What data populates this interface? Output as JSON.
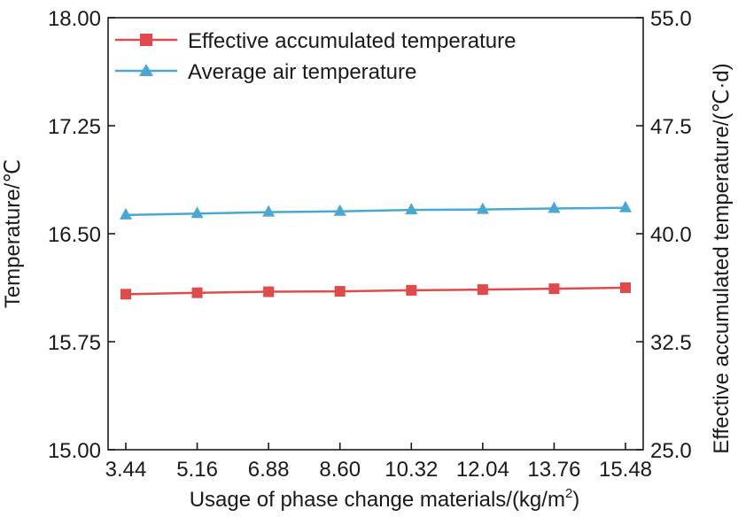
{
  "chart_data": {
    "type": "line",
    "xlabel": "Usage of phase change materials/(kg/m",
    "xlabel_sup": "2",
    "xlabel_close": ")",
    "ylabel_left": "Temperature/℃",
    "ylabel_right": "Effective accumulated temperature/(℃·d)",
    "categories": [
      "3.44",
      "5.16",
      "6.88",
      "8.60",
      "10.32",
      "12.04",
      "13.76",
      "15.48"
    ],
    "x": [
      3.44,
      5.16,
      6.88,
      8.6,
      10.32,
      12.04,
      13.76,
      15.48
    ],
    "xlim": [
      3.44,
      15.48
    ],
    "y_left": {
      "ylim": [
        15.0,
        18.0
      ],
      "ticks": [
        "15.00",
        "15.75",
        "16.50",
        "17.25",
        "18.00"
      ],
      "tick_values": [
        15.0,
        15.75,
        16.5,
        17.25,
        18.0
      ]
    },
    "y_right": {
      "ylim": [
        25.0,
        55.0
      ],
      "ticks": [
        "25.0",
        "32.5",
        "40.0",
        "47.5",
        "55.0"
      ],
      "tick_values": [
        25.0,
        32.5,
        40.0,
        47.5,
        55.0
      ]
    },
    "series": [
      {
        "name": "Effective accumulated temperature",
        "axis": "right",
        "color": "#e04a4a",
        "marker": "square",
        "values": [
          35.8,
          35.9,
          35.97,
          36.0,
          36.07,
          36.12,
          36.18,
          36.25
        ]
      },
      {
        "name": "Average air temperature",
        "axis": "left",
        "color": "#4aa8d0",
        "marker": "triangle",
        "values": [
          16.63,
          16.64,
          16.65,
          16.655,
          16.665,
          16.668,
          16.675,
          16.68
        ]
      }
    ],
    "legend_position": "top-left",
    "grid": false
  }
}
